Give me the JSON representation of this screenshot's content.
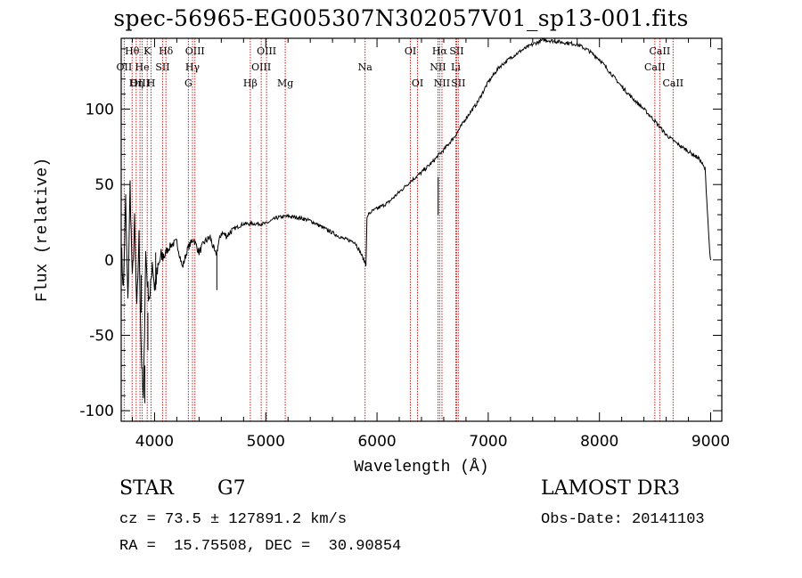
{
  "chart_data": {
    "type": "line",
    "title": "spec-56965-EG005307N302057V01_sp13-001.fits",
    "xlabel": "Wavelength (Å)",
    "ylabel": "Flux (relative)",
    "xlim": [
      3700,
      9100
    ],
    "ylim": [
      -107,
      147
    ],
    "xticks": [
      4000,
      5000,
      6000,
      7000,
      8000,
      9000
    ],
    "yticks": [
      -100,
      -50,
      0,
      50,
      100
    ],
    "series": [
      {
        "name": "flux",
        "x": [
          3700,
          3720,
          3740,
          3760,
          3780,
          3800,
          3820,
          3840,
          3860,
          3880,
          3900,
          3920,
          3940,
          3960,
          3980,
          4000,
          4050,
          4100,
          4150,
          4200,
          4250,
          4300,
          4350,
          4400,
          4450,
          4500,
          4550,
          4600,
          4650,
          4700,
          4800,
          4900,
          5000,
          5100,
          5200,
          5300,
          5400,
          5500,
          5600,
          5700,
          5800,
          5850,
          5900,
          5910,
          5920,
          5950,
          6000,
          6100,
          6200,
          6300,
          6400,
          6500,
          6560,
          6600,
          6700,
          6800,
          6900,
          7000,
          7100,
          7200,
          7300,
          7400,
          7500,
          7600,
          7700,
          7800,
          7900,
          8000,
          8100,
          8200,
          8300,
          8400,
          8500,
          8600,
          8700,
          8800,
          8900,
          8950,
          8990,
          9000
        ],
        "y": [
          10,
          -20,
          40,
          -30,
          50,
          -15,
          25,
          -35,
          15,
          -60,
          -95,
          5,
          -20,
          -25,
          0,
          -18,
          0,
          5,
          10,
          12,
          -5,
          8,
          14,
          5,
          12,
          15,
          3,
          18,
          16,
          20,
          24,
          24,
          24,
          28,
          29,
          28,
          26,
          22,
          18,
          14,
          12,
          5,
          -3,
          27,
          30,
          32,
          34,
          38,
          45,
          52,
          58,
          65,
          70,
          73,
          82,
          94,
          104,
          118,
          128,
          134,
          139,
          143,
          146,
          145,
          144,
          143,
          139,
          133,
          124,
          115,
          107,
          100,
          92,
          83,
          77,
          72,
          67,
          60,
          7,
          0
        ]
      }
    ],
    "lines": [
      {
        "name": "Hθ",
        "x": 3798,
        "row": 0
      },
      {
        "name": "OII",
        "x": 3727,
        "row": 1
      },
      {
        "name": "OIII",
        "x": 3869,
        "row": 2
      },
      {
        "name": "Hη",
        "x": 3835,
        "row": 2
      },
      {
        "name": "K",
        "x": 3934,
        "row": 0
      },
      {
        "name": "He",
        "x": 3889,
        "row": 1
      },
      {
        "name": "H",
        "x": 3969,
        "row": 2
      },
      {
        "name": "Hδ",
        "x": 4102,
        "row": 0
      },
      {
        "name": "SII",
        "x": 4072,
        "row": 1
      },
      {
        "name": "OIII",
        "x": 4363,
        "row": 0
      },
      {
        "name": "Hγ",
        "x": 4341,
        "row": 1
      },
      {
        "name": "G",
        "x": 4304,
        "row": 2
      },
      {
        "name": "Hβ",
        "x": 4861,
        "row": 2
      },
      {
        "name": "OIII",
        "x": 5007,
        "row": 0
      },
      {
        "name": "OIII",
        "x": 4959,
        "row": 1
      },
      {
        "name": "Mg",
        "x": 5175,
        "row": 2
      },
      {
        "name": "Na",
        "x": 5893,
        "row": 1
      },
      {
        "name": "OI",
        "x": 6300,
        "row": 0
      },
      {
        "name": "OI",
        "x": 6364,
        "row": 2
      },
      {
        "name": "Hα",
        "x": 6563,
        "row": 0
      },
      {
        "name": "NII",
        "x": 6548,
        "row": 1
      },
      {
        "name": "NII",
        "x": 6584,
        "row": 2
      },
      {
        "name": "SII",
        "x": 6716,
        "row": 0
      },
      {
        "name": "Li",
        "x": 6708,
        "row": 1
      },
      {
        "name": "SII",
        "x": 6731,
        "row": 2
      },
      {
        "name": "CaII",
        "x": 8542,
        "row": 0
      },
      {
        "name": "CaII",
        "x": 8498,
        "row": 1
      },
      {
        "name": "CaII",
        "x": 8662,
        "row": 2
      }
    ]
  },
  "info": {
    "class": "STAR",
    "subclass": "G7",
    "survey": "LAMOST DR3",
    "cz": "cz = 73.5 ± 127891.2 km/s",
    "obs_date": "Obs-Date: 20141103",
    "radec": "RA =  15.75508, DEC =  30.90854"
  }
}
